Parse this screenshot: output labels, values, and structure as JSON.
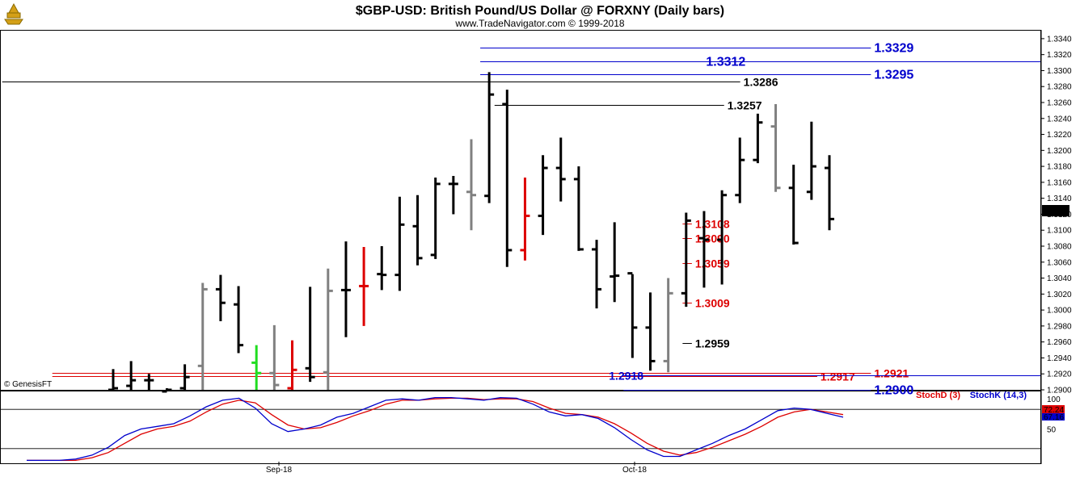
{
  "chart_data": {
    "type": "bar",
    "title": "$GBP-USD:  British Pound/US Dollar @ FORXNY  (Daily bars)",
    "subtitle": "www.TradeNavigator.com © 1999-2018",
    "watermark": "© GenesisFT",
    "ylim": [
      1.29,
      1.335
    ],
    "y_ticks": [
      "1.3340",
      "1.3320",
      "1.3300",
      "1.3280",
      "1.3260",
      "1.3240",
      "1.3220",
      "1.3200",
      "1.3180",
      "1.3160",
      "1.3140",
      "1.3120",
      "1.3100",
      "1.3080",
      "1.3060",
      "1.3040",
      "1.3020",
      "1.3000",
      "1.2980",
      "1.2960",
      "1.2940",
      "1.2920",
      "1.2900"
    ],
    "x_ticks": [
      {
        "label": "Sep-18",
        "bar": 9
      },
      {
        "label": "Oct-18",
        "bar": 30
      }
    ],
    "last_price": "1.3114",
    "bars": [
      {
        "open": 1.29,
        "high": 1.2926,
        "low": 1.2898,
        "close": 1.2902,
        "color": "#000000"
      },
      {
        "open": 1.2905,
        "high": 1.2936,
        "low": 1.2898,
        "close": 1.2912,
        "color": "#000000"
      },
      {
        "open": 1.2912,
        "high": 1.292,
        "low": 1.2898,
        "close": 1.2912,
        "color": "#000000"
      },
      {
        "open": 1.2898,
        "high": 1.2902,
        "low": 1.2896,
        "close": 1.29,
        "color": "#000000"
      },
      {
        "open": 1.2902,
        "high": 1.2932,
        "low": 1.2898,
        "close": 1.2916,
        "color": "#000000"
      },
      {
        "open": 1.293,
        "high": 1.3034,
        "low": 1.2898,
        "close": 1.3026,
        "color": "#808080"
      },
      {
        "open": 1.3026,
        "high": 1.3044,
        "low": 1.2986,
        "close": 1.3009,
        "color": "#000000"
      },
      {
        "open": 1.3007,
        "high": 1.303,
        "low": 1.2946,
        "close": 1.2956,
        "color": "#000000"
      },
      {
        "open": 1.2934,
        "high": 1.2956,
        "low": 1.2898,
        "close": 1.2921,
        "color": "#20dd20"
      },
      {
        "open": 1.2921,
        "high": 1.2981,
        "low": 1.2898,
        "close": 1.2906,
        "color": "#808080"
      },
      {
        "open": 1.2902,
        "high": 1.2962,
        "low": 1.2898,
        "close": 1.2925,
        "color": "#dd0000"
      },
      {
        "open": 1.2927,
        "high": 1.3029,
        "low": 1.291,
        "close": 1.2916,
        "color": "#000000"
      },
      {
        "open": 1.2922,
        "high": 1.3052,
        "low": 1.2898,
        "close": 1.3024,
        "color": "#808080"
      },
      {
        "open": 1.3025,
        "high": 1.3086,
        "low": 1.2966,
        "close": 1.3025,
        "color": "#000000"
      },
      {
        "open": 1.303,
        "high": 1.3079,
        "low": 1.298,
        "close": 1.303,
        "color": "#dd0000"
      },
      {
        "open": 1.3045,
        "high": 1.308,
        "low": 1.3025,
        "close": 1.3044,
        "color": "#000000"
      },
      {
        "open": 1.3044,
        "high": 1.3142,
        "low": 1.3024,
        "close": 1.3107,
        "color": "#000000"
      },
      {
        "open": 1.3105,
        "high": 1.3144,
        "low": 1.3056,
        "close": 1.3065,
        "color": "#000000"
      },
      {
        "open": 1.3069,
        "high": 1.3166,
        "low": 1.3064,
        "close": 1.3158,
        "color": "#000000"
      },
      {
        "open": 1.3158,
        "high": 1.3168,
        "low": 1.312,
        "close": 1.3158,
        "color": "#000000"
      },
      {
        "open": 1.3148,
        "high": 1.3214,
        "low": 1.31,
        "close": 1.3144,
        "color": "#808080"
      },
      {
        "open": 1.3143,
        "high": 1.3298,
        "low": 1.3134,
        "close": 1.327,
        "color": "#000000"
      },
      {
        "open": 1.3258,
        "high": 1.3276,
        "low": 1.3054,
        "close": 1.3075,
        "color": "#000000"
      },
      {
        "open": 1.3075,
        "high": 1.3166,
        "low": 1.3062,
        "close": 1.3118,
        "color": "#dd0000"
      },
      {
        "open": 1.3118,
        "high": 1.3194,
        "low": 1.3094,
        "close": 1.3178,
        "color": "#000000"
      },
      {
        "open": 1.3178,
        "high": 1.3216,
        "low": 1.3136,
        "close": 1.3164,
        "color": "#000000"
      },
      {
        "open": 1.3164,
        "high": 1.318,
        "low": 1.3074,
        "close": 1.3076,
        "color": "#000000"
      },
      {
        "open": 1.3076,
        "high": 1.3088,
        "low": 1.3002,
        "close": 1.3026,
        "color": "#000000"
      },
      {
        "open": 1.3042,
        "high": 1.311,
        "low": 1.301,
        "close": 1.3043,
        "color": "#000000"
      },
      {
        "open": 1.3046,
        "high": 1.3045,
        "low": 1.294,
        "close": 1.2978,
        "color": "#000000"
      },
      {
        "open": 1.2978,
        "high": 1.3022,
        "low": 1.2924,
        "close": 1.2936,
        "color": "#000000"
      },
      {
        "open": 1.2936,
        "high": 1.304,
        "low": 1.2922,
        "close": 1.3021,
        "color": "#808080"
      },
      {
        "open": 1.3021,
        "high": 1.3122,
        "low": 1.3004,
        "close": 1.3112,
        "color": "#000000"
      },
      {
        "open": 1.309,
        "high": 1.3124,
        "low": 1.3028,
        "close": 1.3088,
        "color": "#000000"
      },
      {
        "open": 1.3088,
        "high": 1.315,
        "low": 1.3032,
        "close": 1.3144,
        "color": "#000000"
      },
      {
        "open": 1.3144,
        "high": 1.3216,
        "low": 1.3134,
        "close": 1.3188,
        "color": "#000000"
      },
      {
        "open": 1.3188,
        "high": 1.3246,
        "low": 1.3184,
        "close": 1.3235,
        "color": "#000000"
      },
      {
        "open": 1.323,
        "high": 1.3258,
        "low": 1.3148,
        "close": 1.3153,
        "color": "#808080"
      },
      {
        "open": 1.3153,
        "high": 1.3182,
        "low": 1.3082,
        "close": 1.3084,
        "color": "#000000"
      },
      {
        "open": 1.3148,
        "high": 1.3236,
        "low": 1.3138,
        "close": 1.318,
        "color": "#000000"
      },
      {
        "open": 1.3178,
        "high": 1.3194,
        "low": 1.31,
        "close": 1.3114,
        "color": "#000000"
      }
    ],
    "levels": [
      {
        "price": 1.3329,
        "label": "1.3329",
        "color": "#0000cc",
        "x_start_bar": 20.5,
        "label_bar": 42.5,
        "big": true
      },
      {
        "price": 1.3312,
        "label": "1.3312",
        "color": "#0000cc",
        "x_start_bar": 20.5,
        "label_bar": 35.5,
        "label_right": true,
        "big": true
      },
      {
        "price": 1.3295,
        "label": "1.3295",
        "color": "#0000cc",
        "x_start_bar": 20.5,
        "label_bar": 42.5,
        "big": true
      },
      {
        "price": 1.3286,
        "label": "1.3286",
        "color": "#000000",
        "x_start_bar": -6.2,
        "label_bar": 35.2
      },
      {
        "price": 1.3257,
        "label": "1.3257",
        "color": "#000000",
        "x_start_bar": 21.3,
        "label_bar": 34.3
      },
      {
        "price": 1.3108,
        "label": "1.3108",
        "color": "#dd0000",
        "x_start_bar": 31.8,
        "label_bar": 32.5
      },
      {
        "price": 1.309,
        "label": "1.3090",
        "color": "#dd0000",
        "x_start_bar": 31.8,
        "label_bar": 32.5
      },
      {
        "price": 1.3059,
        "label": "1.3059",
        "color": "#dd0000",
        "x_start_bar": 31.8,
        "label_bar": 32.5
      },
      {
        "price": 1.3009,
        "label": "1.3009",
        "color": "#dd0000",
        "x_start_bar": 31.8,
        "label_bar": 32.5
      },
      {
        "price": 1.2959,
        "label": "1.2959",
        "color": "#000000",
        "x_start_bar": 31.8,
        "label_bar": 32.5
      },
      {
        "price": 1.2921,
        "label": "1.2921",
        "color": "#dd0000",
        "x_start_bar": -3.4,
        "label_bar": 42.5
      },
      {
        "price": 1.2917,
        "label": "1.2917",
        "color": "#dd0000",
        "x_start_bar": -3.4,
        "label_bar": 39.5
      },
      {
        "price": 1.2918,
        "label": "1.2918",
        "color": "#0000cc",
        "x_start_bar": 28.5,
        "label_bar": 29.8,
        "label_right": true
      },
      {
        "price": 1.29,
        "label": "1.2900",
        "color": "#0000cc",
        "x_start_bar": 28.5,
        "label_bar": 42.5,
        "big": true
      }
    ],
    "stochastic": {
      "ylim": [
        0,
        100
      ],
      "y_ticks": [
        "100",
        "50"
      ],
      "d_label": "StochD (3)",
      "k_label": "StochK (14,3)",
      "d_value": "72.24",
      "k_value": "67.16",
      "d_color": "#dd0000",
      "k_color": "#0000cc",
      "k_values": [
        2,
        2,
        2,
        4,
        10,
        22,
        40,
        50,
        54,
        58,
        70,
        84,
        94,
        97,
        82,
        58,
        46,
        50,
        56,
        68,
        74,
        84,
        94,
        96,
        94,
        98,
        98,
        96,
        94,
        98,
        97,
        88,
        76,
        70,
        72,
        66,
        52,
        34,
        18,
        8,
        8,
        18,
        28,
        40,
        50,
        64,
        78,
        82,
        80,
        74,
        68
      ],
      "d_values": [
        2,
        2,
        2,
        2,
        6,
        14,
        28,
        42,
        50,
        54,
        62,
        76,
        88,
        94,
        90,
        72,
        56,
        50,
        52,
        60,
        70,
        78,
        88,
        94,
        94,
        96,
        97,
        97,
        95,
        96,
        96,
        92,
        82,
        74,
        72,
        68,
        58,
        44,
        28,
        16,
        10,
        14,
        22,
        32,
        42,
        54,
        68,
        76,
        80,
        76,
        72
      ]
    }
  }
}
